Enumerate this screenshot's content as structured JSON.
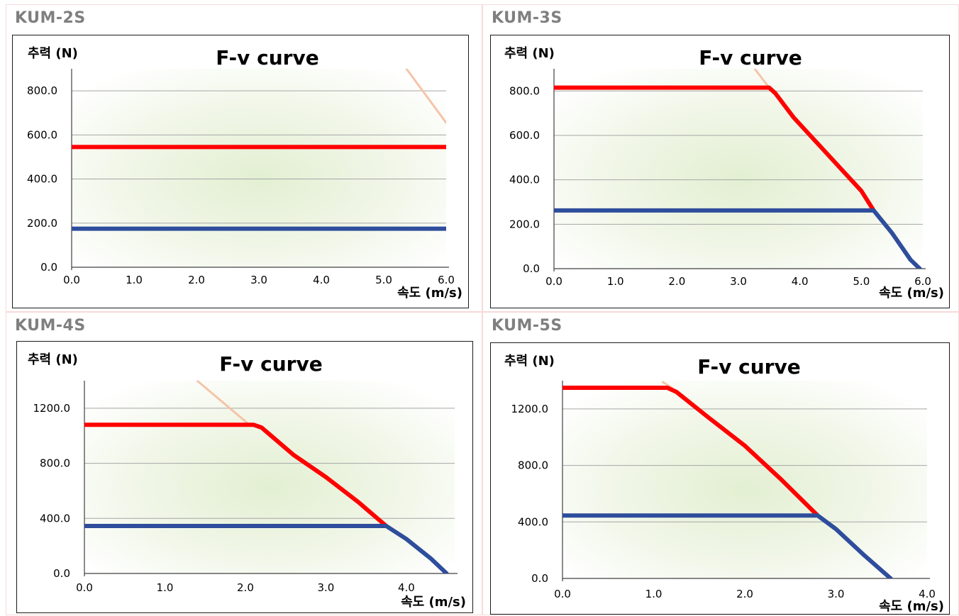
{
  "chart_data": [
    {
      "type": "line",
      "model_label": "KUM-2S",
      "title": "F-v curve",
      "ylabel": "추력 (N)",
      "xlabel": "속도 (m/s)",
      "xlim": [
        0,
        6
      ],
      "ylim": [
        0,
        900
      ],
      "x_ticks": [
        "0.0",
        "1.0",
        "2.0",
        "3.0",
        "4.0",
        "5.0",
        "6.0"
      ],
      "y_ticks": [
        "0.0",
        "200.0",
        "400.0",
        "600.0",
        "800.0"
      ],
      "y_tick_values": [
        0,
        200,
        400,
        600,
        800
      ],
      "grid": true,
      "series": [
        {
          "color": "#f5c4a8",
          "points": [
            [
              5.35,
              905
            ],
            [
              6.0,
              655
            ]
          ]
        },
        {
          "color": "#ff0000",
          "points": [
            [
              0.0,
              545
            ],
            [
              6.0,
              545
            ]
          ]
        },
        {
          "color": "#2e4d9c",
          "points": [
            [
              0.0,
              175
            ],
            [
              6.0,
              175
            ]
          ]
        }
      ]
    },
    {
      "type": "line",
      "model_label": "KUM-3S",
      "title": "F-v curve",
      "ylabel": "추력 (N)",
      "xlabel": "속도 (m/s)",
      "xlim": [
        0,
        6
      ],
      "ylim": [
        0,
        900
      ],
      "x_ticks": [
        "0.0",
        "1.0",
        "2.0",
        "3.0",
        "4.0",
        "5.0",
        "6.0"
      ],
      "y_ticks": [
        "0.0",
        "200.0",
        "400.0",
        "600.0",
        "800.0"
      ],
      "y_tick_values": [
        0,
        200,
        400,
        600,
        800
      ],
      "grid": true,
      "series": [
        {
          "color": "#f5c4a8",
          "points": [
            [
              3.25,
              905
            ],
            [
              3.5,
              815
            ]
          ]
        },
        {
          "color": "#ff0000",
          "points": [
            [
              0.0,
              815
            ],
            [
              3.5,
              815
            ],
            [
              3.6,
              790
            ],
            [
              3.9,
              680
            ],
            [
              4.3,
              560
            ],
            [
              4.7,
              440
            ],
            [
              5.0,
              350
            ],
            [
              5.2,
              262
            ]
          ]
        },
        {
          "color": "#2e4d9c",
          "points": [
            [
              0.0,
              262
            ],
            [
              5.2,
              262
            ],
            [
              5.5,
              160
            ],
            [
              5.8,
              40
            ],
            [
              5.95,
              0
            ]
          ]
        }
      ]
    },
    {
      "type": "line",
      "model_label": "KUM-4S",
      "title": "F-v curve",
      "ylabel": "추력 (N)",
      "xlabel": "속도 (m/s)",
      "xlim": [
        0,
        4.6
      ],
      "ylim": [
        0,
        1400
      ],
      "x_ticks": [
        "0.0",
        "1.0",
        "2.0",
        "3.0",
        "4.0"
      ],
      "y_ticks": [
        "0.0",
        "400.0",
        "800.0",
        "1200.0"
      ],
      "y_tick_values": [
        0,
        400,
        800,
        1200
      ],
      "grid": true,
      "series": [
        {
          "color": "#f5c4a8",
          "points": [
            [
              1.4,
              1400
            ],
            [
              2.05,
              1080
            ]
          ]
        },
        {
          "color": "#ff0000",
          "points": [
            [
              0.0,
              1080
            ],
            [
              2.1,
              1080
            ],
            [
              2.2,
              1060
            ],
            [
              2.6,
              860
            ],
            [
              3.0,
              700
            ],
            [
              3.4,
              520
            ],
            [
              3.75,
              345
            ]
          ]
        },
        {
          "color": "#2e4d9c",
          "points": [
            [
              0.0,
              345
            ],
            [
              3.75,
              345
            ],
            [
              4.0,
              250
            ],
            [
              4.3,
              110
            ],
            [
              4.5,
              0
            ]
          ]
        }
      ]
    },
    {
      "type": "line",
      "model_label": "KUM-5S",
      "title": "F-v curve",
      "ylabel": "추력 (N)",
      "xlabel": "속도 (m/s)",
      "xlim": [
        0,
        4.0
      ],
      "ylim": [
        0,
        1400
      ],
      "x_ticks": [
        "0.0",
        "1.0",
        "2.0",
        "3.0",
        "4.0"
      ],
      "y_ticks": [
        "0.0",
        "400.0",
        "800.0",
        "1200.0"
      ],
      "y_tick_values": [
        0,
        400,
        800,
        1200
      ],
      "grid": true,
      "series": [
        {
          "color": "#f5c4a8",
          "points": [
            [
              1.1,
              1390
            ],
            [
              1.2,
              1350
            ]
          ]
        },
        {
          "color": "#ff0000",
          "points": [
            [
              0.0,
              1350
            ],
            [
              1.15,
              1350
            ],
            [
              1.25,
              1320
            ],
            [
              1.6,
              1140
            ],
            [
              2.0,
              940
            ],
            [
              2.4,
              700
            ],
            [
              2.8,
              445
            ]
          ]
        },
        {
          "color": "#2e4d9c",
          "points": [
            [
              0.0,
              445
            ],
            [
              2.8,
              445
            ],
            [
              3.0,
              350
            ],
            [
              3.3,
              170
            ],
            [
              3.6,
              0
            ]
          ]
        }
      ]
    }
  ]
}
